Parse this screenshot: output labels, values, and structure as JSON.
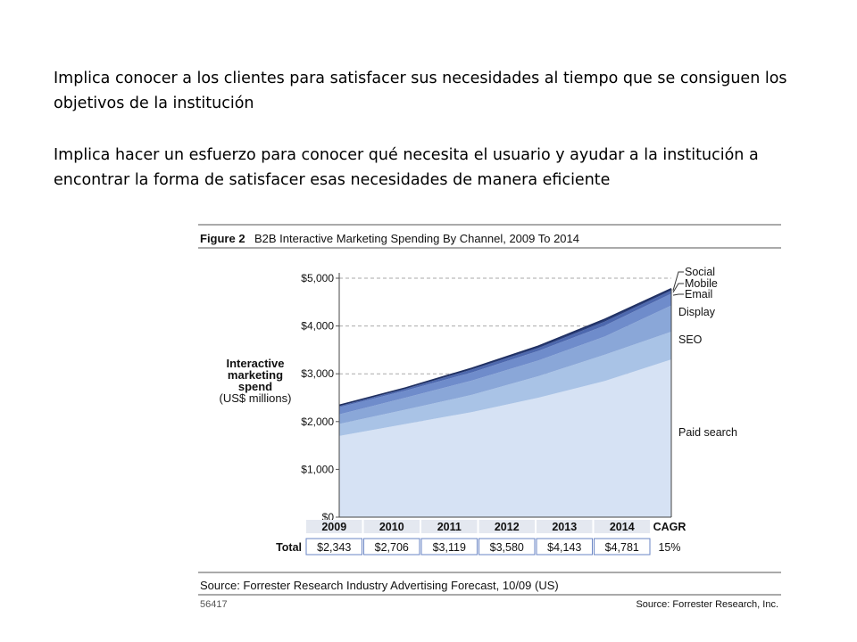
{
  "paragraphs": [
    "Implica conocer a los clientes para satisfacer sus necesidades al tiempo que se consiguen los objetivos de la institución",
    "Implica hacer un esfuerzo para conocer qué necesita el usuario y ayudar a la institución a encontrar la forma de satisfacer esas necesidades de manera eficiente"
  ],
  "figure": {
    "label": "Figure 2",
    "title": "B2B Interactive Marketing Spending By Channel, 2009 To 2014",
    "source": "Source: Forrester Research Industry Advertising Forecast, 10/09 (US)",
    "id": "56417",
    "credit": "Source: Forrester Research, Inc."
  },
  "chart_data": {
    "type": "area",
    "stacked": true,
    "title": "B2B Interactive Marketing Spending By Channel, 2009 To 2014",
    "ylabel_lines": [
      "Interactive",
      "marketing",
      "spend",
      "(US$ millions)"
    ],
    "x": [
      "2009",
      "2010",
      "2011",
      "2012",
      "2013",
      "2014"
    ],
    "ylim": [
      0,
      5000
    ],
    "yticks": [
      {
        "value": 0,
        "label": "$0"
      },
      {
        "value": 1000,
        "label": "$1,000"
      },
      {
        "value": 2000,
        "label": "$2,000"
      },
      {
        "value": 3000,
        "label": "$3,000"
      },
      {
        "value": 4000,
        "label": "$4,000"
      },
      {
        "value": 5000,
        "label": "$5,000"
      }
    ],
    "grid": "dashed",
    "legend": "right",
    "series": [
      {
        "name": "Paid search",
        "color": "#d6e2f4",
        "values": [
          1700,
          1950,
          2200,
          2500,
          2850,
          3300
        ]
      },
      {
        "name": "SEO",
        "color": "#a9c3e6",
        "values": [
          250,
          300,
          360,
          450,
          550,
          580
        ]
      },
      {
        "name": "Display",
        "color": "#8aa7d8",
        "values": [
          200,
          250,
          300,
          330,
          380,
          550
        ]
      },
      {
        "name": "Email",
        "color": "#6f8ccb",
        "values": [
          150,
          150,
          170,
          200,
          230,
          250
        ]
      },
      {
        "name": "Mobile",
        "color": "#4d68ae",
        "values": [
          23,
          36,
          59,
          60,
          83,
          61
        ]
      },
      {
        "name": "Social",
        "color": "#2b3f7c",
        "values": [
          20,
          20,
          30,
          40,
          50,
          40
        ]
      }
    ],
    "table": {
      "row_label": "Total",
      "values": [
        "$2,343",
        "$2,706",
        "$3,119",
        "$3,580",
        "$4,143",
        "$4,781"
      ],
      "cagr_label": "CAGR",
      "cagr": "15%"
    }
  }
}
